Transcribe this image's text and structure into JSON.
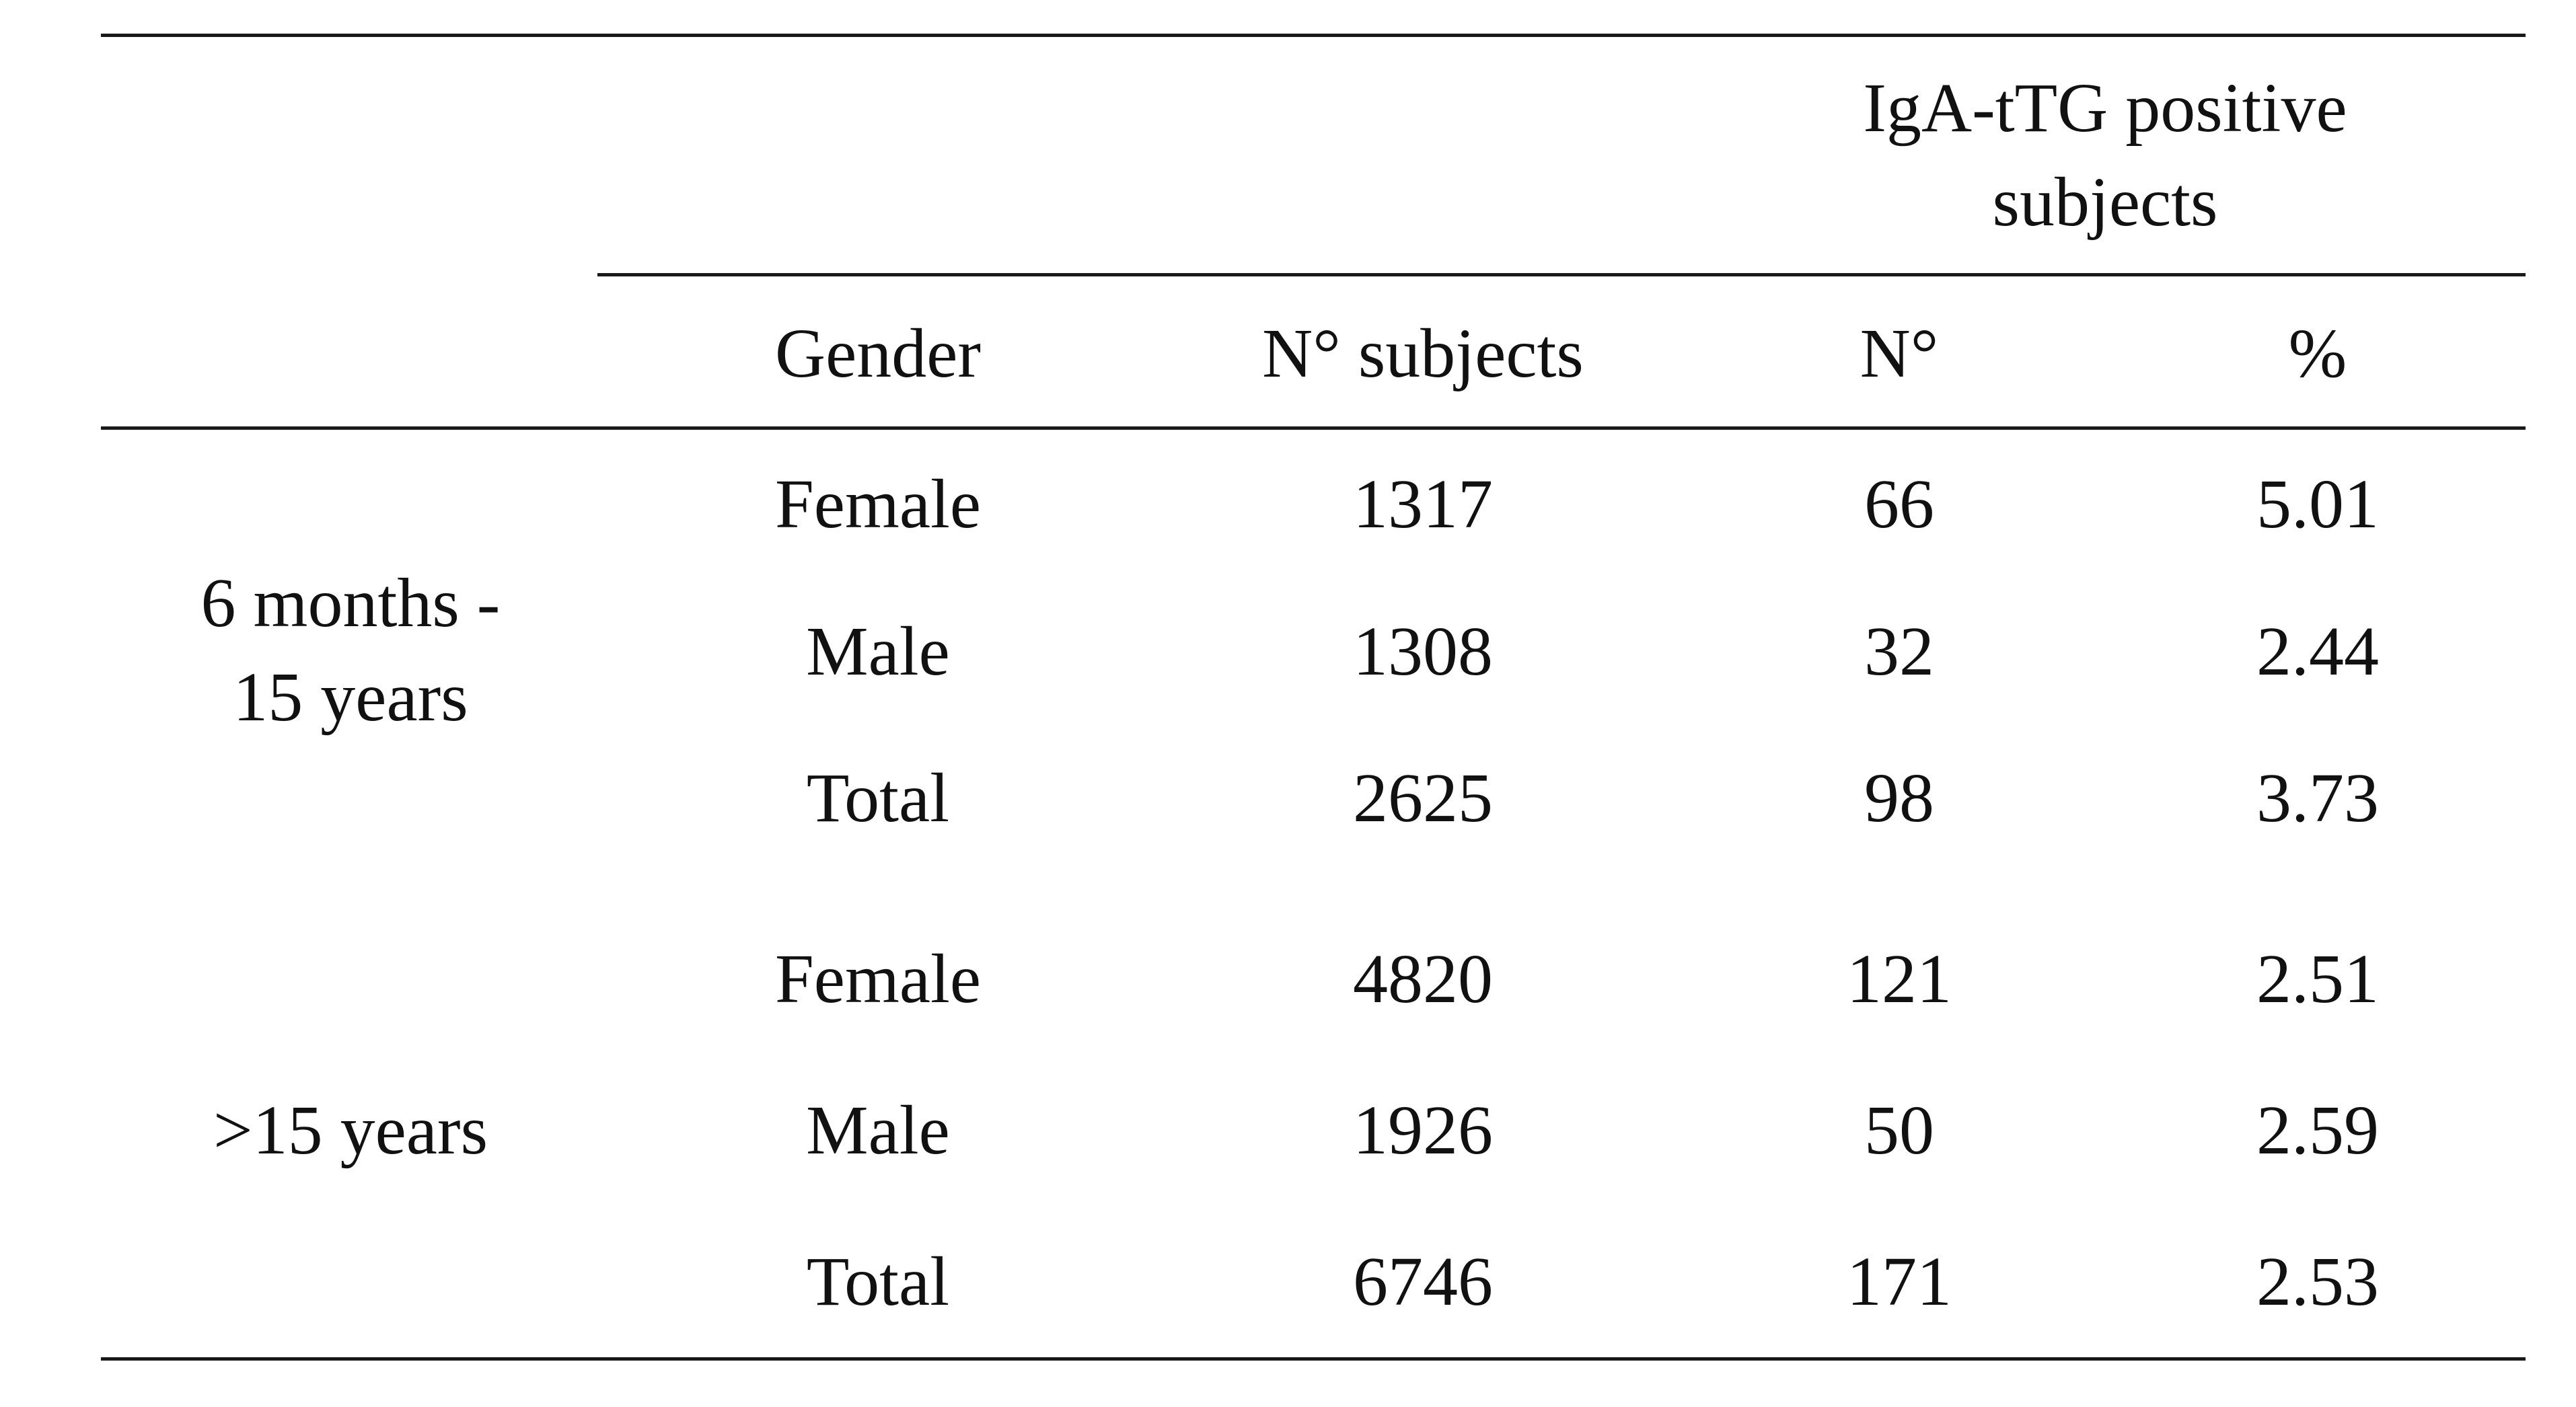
{
  "table": {
    "group_header": [
      "IgA-tTG positive",
      "subjects"
    ],
    "columns": {
      "gender": "Gender",
      "n_subjects": "N° subjects",
      "n_positive": "N°",
      "percent": "%"
    },
    "groups": [
      {
        "label": [
          "6 months -",
          "15 years"
        ],
        "rows": [
          {
            "gender": "Female",
            "n_subjects": "1317",
            "n_positive": "66",
            "percent": "5.01"
          },
          {
            "gender": "Male",
            "n_subjects": "1308",
            "n_positive": "32",
            "percent": "2.44"
          },
          {
            "gender": "Total",
            "n_subjects": "2625",
            "n_positive": "98",
            "percent": "3.73"
          }
        ]
      },
      {
        "label": [
          ">15 years"
        ],
        "rows": [
          {
            "gender": "Female",
            "n_subjects": "4820",
            "n_positive": "121",
            "percent": "2.51"
          },
          {
            "gender": "Male",
            "n_subjects": "1926",
            "n_positive": "50",
            "percent": "2.59"
          },
          {
            "gender": "Total",
            "n_subjects": "6746",
            "n_positive": "171",
            "percent": "2.53"
          }
        ]
      }
    ]
  }
}
